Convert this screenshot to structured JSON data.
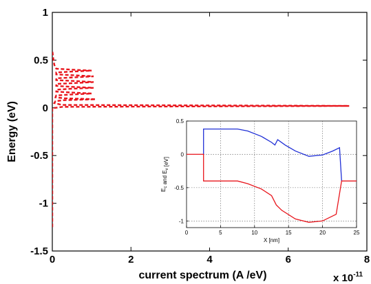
{
  "chart_data": [
    {
      "type": "line",
      "xlabel": "current spectrum (A /eV)",
      "ylabel": "Energy (eV)",
      "x_multiplier": "x 10",
      "x_multiplier_exp": "-11",
      "xlim": [
        0,
        8
      ],
      "ylim": [
        -1.5,
        1
      ],
      "xticks": [
        0,
        2,
        4,
        6,
        8
      ],
      "xtick_labels": [
        "0",
        "2",
        "4",
        "6",
        "8"
      ],
      "yticks": [
        1,
        0.5,
        0,
        -0.5,
        -1,
        -1.5
      ],
      "ytick_labels": [
        "1",
        "0.5",
        "0",
        "-0.5",
        "-1",
        "-1.5"
      ],
      "grid": false,
      "series": [
        {
          "style": "dashed",
          "color": "#e8141b",
          "points": [
            [
              0,
              -1.25
            ],
            [
              0,
              0.0
            ],
            [
              0.08,
              0.0
            ],
            [
              0.25,
              0.01
            ],
            [
              7.55,
              0.02
            ],
            [
              0.25,
              0.03
            ],
            [
              0.05,
              0.05
            ],
            [
              0.08,
              0.07
            ],
            [
              0.3,
              0.08
            ],
            [
              1.1,
              0.09
            ],
            [
              0.3,
              0.1
            ],
            [
              0.08,
              0.11
            ],
            [
              0.1,
              0.13
            ],
            [
              0.5,
              0.14
            ],
            [
              1.0,
              0.15
            ],
            [
              0.5,
              0.16
            ],
            [
              0.1,
              0.17
            ],
            [
              0.1,
              0.19
            ],
            [
              0.5,
              0.2
            ],
            [
              1.05,
              0.21
            ],
            [
              0.5,
              0.22
            ],
            [
              0.1,
              0.23
            ],
            [
              0.1,
              0.25
            ],
            [
              0.6,
              0.26
            ],
            [
              1.05,
              0.27
            ],
            [
              0.6,
              0.28
            ],
            [
              0.1,
              0.29
            ],
            [
              0.1,
              0.31
            ],
            [
              0.6,
              0.32
            ],
            [
              1.05,
              0.33
            ],
            [
              0.6,
              0.34
            ],
            [
              0.1,
              0.35
            ],
            [
              0.1,
              0.37
            ],
            [
              0.5,
              0.38
            ],
            [
              1.0,
              0.39
            ],
            [
              0.5,
              0.4
            ],
            [
              0.1,
              0.41
            ],
            [
              0.05,
              0.45
            ],
            [
              0.03,
              0.5
            ],
            [
              0.0,
              0.6
            ]
          ]
        }
      ]
    },
    {
      "type": "line",
      "xlabel": "X [nm]",
      "ylabel": "E_c and E_v [eV]",
      "xlim": [
        0,
        25
      ],
      "ylim": [
        -1.1,
        0.5
      ],
      "xticks": [
        0,
        5,
        10,
        15,
        20,
        25
      ],
      "xtick_labels": [
        "0",
        "5",
        "10",
        "15",
        "20",
        "25"
      ],
      "yticks": [
        0.5,
        0,
        -0.5,
        -1
      ],
      "ytick_labels": [
        "0.5",
        "0",
        "-0.5",
        "-1"
      ],
      "grid": true,
      "series": [
        {
          "name": "E_c",
          "color": "#1f2fd6",
          "points": [
            [
              2.5,
              0.0
            ],
            [
              2.5,
              0.38
            ],
            [
              7.5,
              0.38
            ],
            [
              9,
              0.35
            ],
            [
              11,
              0.27
            ],
            [
              12.5,
              0.18
            ],
            [
              13,
              0.14
            ],
            [
              13.4,
              0.22
            ],
            [
              14.5,
              0.14
            ],
            [
              16,
              0.05
            ],
            [
              18,
              -0.03
            ],
            [
              20,
              -0.01
            ],
            [
              21.5,
              0.05
            ],
            [
              22.5,
              0.1
            ],
            [
              22.8,
              -0.4
            ]
          ]
        },
        {
          "name": "E_v",
          "color": "#e8141b",
          "points": [
            [
              0,
              0.0
            ],
            [
              2.5,
              0.0
            ],
            [
              2.5,
              -0.4
            ],
            [
              7.5,
              -0.4
            ],
            [
              9,
              -0.44
            ],
            [
              11,
              -0.52
            ],
            [
              12.5,
              -0.62
            ],
            [
              13.2,
              -0.76
            ],
            [
              14,
              -0.84
            ],
            [
              16,
              -0.97
            ],
            [
              18,
              -1.02
            ],
            [
              20,
              -1.0
            ],
            [
              22,
              -0.9
            ],
            [
              22.8,
              -0.4
            ],
            [
              25,
              -0.4
            ]
          ]
        }
      ]
    }
  ]
}
